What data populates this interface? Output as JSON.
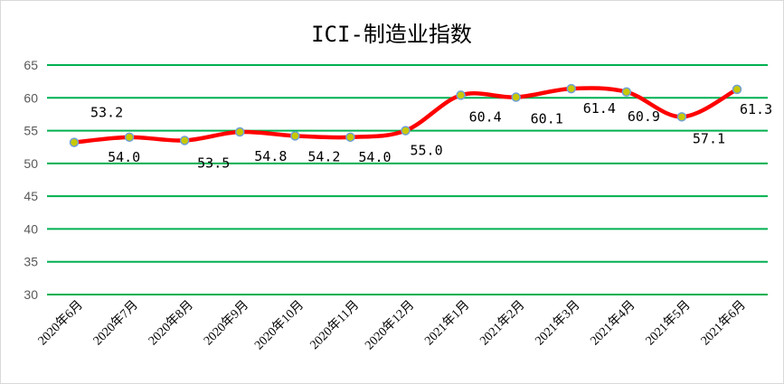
{
  "chart_data": {
    "type": "line",
    "title": "ICI-制造业指数",
    "categories": [
      "2020年6月",
      "2020年7月",
      "2020年8月",
      "2020年9月",
      "2020年10月",
      "2020年11月",
      "2020年12月",
      "2021年1月",
      "2021年2月",
      "2021年3月",
      "2021年4月",
      "2021年5月",
      "2021年6月"
    ],
    "series": [
      {
        "values": [
          53.2,
          54.0,
          53.5,
          54.8,
          54.2,
          54.0,
          55.0,
          60.4,
          60.1,
          61.4,
          60.9,
          57.1,
          61.3
        ]
      }
    ],
    "data_labels": [
      "53.2",
      "54.0",
      "53.5",
      "54.8",
      "54.2",
      "54.0",
      "55.0",
      "60.4",
      "60.1",
      "61.4",
      "60.9",
      "57.1",
      "61.3"
    ],
    "ylim": [
      30,
      65
    ],
    "yticks": [
      "30",
      "35",
      "40",
      "45",
      "50",
      "55",
      "60",
      "65"
    ],
    "grid": true,
    "smooth": true,
    "xlabel": "",
    "ylabel": "",
    "colors": {
      "line": "#ff0000",
      "grid": "#00b050",
      "marker": "#c8c800",
      "marker_edge": "#6f9fd8"
    }
  }
}
